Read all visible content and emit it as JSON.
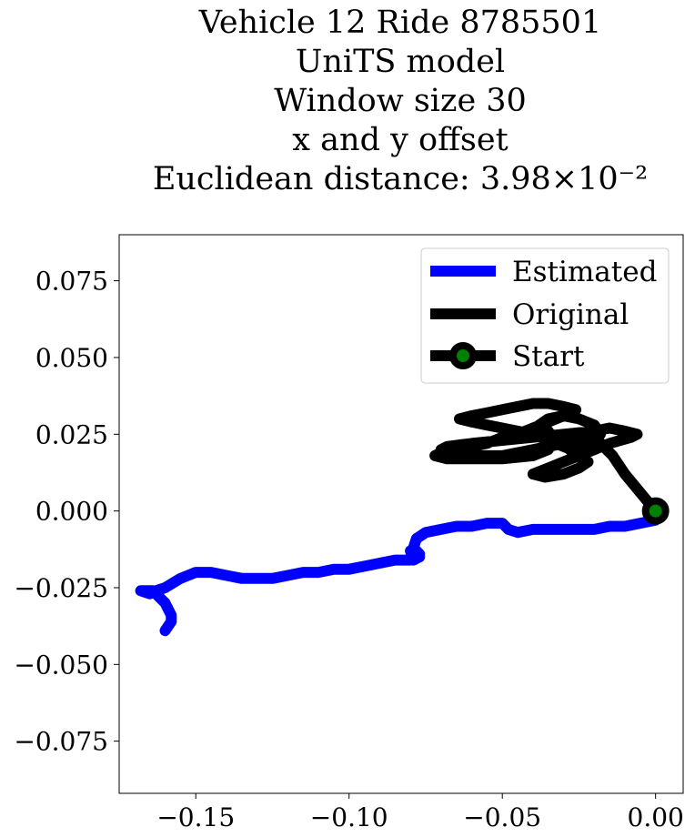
{
  "chart_data": {
    "type": "line",
    "title_lines": [
      "Vehicle 12 Ride 8785501",
      "UniTS model",
      "Window size 30",
      "x and y offset",
      "Euclidean distance: 3.98×10⁻²"
    ],
    "xlabel": "",
    "ylabel": "",
    "xlim": [
      -0.175,
      0.009
    ],
    "ylim": [
      -0.092,
      0.09
    ],
    "xticks": [
      -0.15,
      -0.1,
      -0.05,
      0.0
    ],
    "xtick_labels": [
      "−0.15",
      "−0.10",
      "−0.05",
      "0.00"
    ],
    "yticks": [
      0.075,
      0.05,
      0.025,
      0.0,
      -0.025,
      -0.05,
      -0.075
    ],
    "ytick_labels": [
      "0.075",
      "0.050",
      "0.025",
      "0.000",
      "−0.025",
      "−0.050",
      "−0.075"
    ],
    "grid": false,
    "legend_position": "top-right",
    "series": [
      {
        "name": "Estimated",
        "color": "#0000ff",
        "points": [
          [
            0.0,
            -0.003
          ],
          [
            -0.005,
            -0.004
          ],
          [
            -0.01,
            -0.005
          ],
          [
            -0.015,
            -0.005
          ],
          [
            -0.02,
            -0.006
          ],
          [
            -0.025,
            -0.006
          ],
          [
            -0.03,
            -0.006
          ],
          [
            -0.035,
            -0.006
          ],
          [
            -0.04,
            -0.006
          ],
          [
            -0.045,
            -0.007
          ],
          [
            -0.048,
            -0.006
          ],
          [
            -0.05,
            -0.004
          ],
          [
            -0.055,
            -0.004
          ],
          [
            -0.06,
            -0.005
          ],
          [
            -0.065,
            -0.005
          ],
          [
            -0.07,
            -0.006
          ],
          [
            -0.075,
            -0.007
          ],
          [
            -0.078,
            -0.009
          ],
          [
            -0.079,
            -0.012
          ],
          [
            -0.077,
            -0.014
          ],
          [
            -0.08,
            -0.013
          ],
          [
            -0.079,
            -0.016
          ],
          [
            -0.077,
            -0.015
          ],
          [
            -0.08,
            -0.016
          ],
          [
            -0.085,
            -0.016
          ],
          [
            -0.09,
            -0.017
          ],
          [
            -0.095,
            -0.018
          ],
          [
            -0.1,
            -0.019
          ],
          [
            -0.105,
            -0.019
          ],
          [
            -0.11,
            -0.02
          ],
          [
            -0.113,
            -0.02
          ],
          [
            -0.115,
            -0.02
          ],
          [
            -0.12,
            -0.021
          ],
          [
            -0.125,
            -0.022
          ],
          [
            -0.13,
            -0.022
          ],
          [
            -0.135,
            -0.022
          ],
          [
            -0.14,
            -0.021
          ],
          [
            -0.145,
            -0.02
          ],
          [
            -0.15,
            -0.02
          ],
          [
            -0.155,
            -0.022
          ],
          [
            -0.16,
            -0.025
          ],
          [
            -0.163,
            -0.026
          ],
          [
            -0.165,
            -0.027
          ],
          [
            -0.168,
            -0.026
          ],
          [
            -0.164,
            -0.026
          ],
          [
            -0.162,
            -0.028
          ],
          [
            -0.16,
            -0.03
          ],
          [
            -0.158,
            -0.034
          ],
          [
            -0.158,
            -0.036
          ],
          [
            -0.16,
            -0.039
          ]
        ]
      },
      {
        "name": "Original",
        "color": "#000000",
        "points": [
          [
            0.0,
            0.0
          ],
          [
            -0.005,
            0.006
          ],
          [
            -0.01,
            0.012
          ],
          [
            -0.014,
            0.018
          ],
          [
            -0.018,
            0.022
          ],
          [
            -0.02,
            0.026
          ],
          [
            -0.025,
            0.024
          ],
          [
            -0.03,
            0.022
          ],
          [
            -0.04,
            0.02
          ],
          [
            -0.05,
            0.018
          ],
          [
            -0.06,
            0.018
          ],
          [
            -0.065,
            0.019
          ],
          [
            -0.07,
            0.02
          ],
          [
            -0.068,
            0.021
          ],
          [
            -0.06,
            0.022
          ],
          [
            -0.05,
            0.023
          ],
          [
            -0.04,
            0.024
          ],
          [
            -0.03,
            0.025
          ],
          [
            -0.02,
            0.026
          ],
          [
            -0.015,
            0.027
          ],
          [
            -0.01,
            0.026
          ],
          [
            -0.006,
            0.025
          ],
          [
            -0.008,
            0.024
          ],
          [
            -0.015,
            0.022
          ],
          [
            -0.02,
            0.02
          ],
          [
            -0.025,
            0.018
          ],
          [
            -0.03,
            0.016
          ],
          [
            -0.035,
            0.014
          ],
          [
            -0.04,
            0.012
          ],
          [
            -0.036,
            0.011
          ],
          [
            -0.03,
            0.012
          ],
          [
            -0.025,
            0.014
          ],
          [
            -0.022,
            0.016
          ],
          [
            -0.025,
            0.019
          ],
          [
            -0.03,
            0.021
          ],
          [
            -0.035,
            0.023
          ],
          [
            -0.04,
            0.025
          ],
          [
            -0.045,
            0.026
          ],
          [
            -0.05,
            0.027
          ],
          [
            -0.055,
            0.028
          ],
          [
            -0.06,
            0.029
          ],
          [
            -0.064,
            0.03
          ],
          [
            -0.06,
            0.031
          ],
          [
            -0.055,
            0.032
          ],
          [
            -0.05,
            0.033
          ],
          [
            -0.045,
            0.034
          ],
          [
            -0.04,
            0.035
          ],
          [
            -0.035,
            0.035
          ],
          [
            -0.03,
            0.034
          ],
          [
            -0.026,
            0.033
          ],
          [
            -0.03,
            0.031
          ],
          [
            -0.035,
            0.029
          ],
          [
            -0.04,
            0.027
          ],
          [
            -0.045,
            0.025
          ],
          [
            -0.05,
            0.024
          ],
          [
            -0.055,
            0.022
          ],
          [
            -0.06,
            0.021
          ],
          [
            -0.065,
            0.02
          ],
          [
            -0.07,
            0.019
          ],
          [
            -0.072,
            0.018
          ],
          [
            -0.068,
            0.017
          ],
          [
            -0.06,
            0.017
          ],
          [
            -0.05,
            0.017
          ],
          [
            -0.04,
            0.018
          ],
          [
            -0.035,
            0.02
          ],
          [
            -0.033,
            0.023
          ],
          [
            -0.035,
            0.026
          ],
          [
            -0.038,
            0.028
          ],
          [
            -0.035,
            0.03
          ],
          [
            -0.03,
            0.031
          ],
          [
            -0.025,
            0.03
          ],
          [
            -0.02,
            0.028
          ],
          [
            -0.018,
            0.025
          ],
          [
            -0.022,
            0.022
          ],
          [
            -0.028,
            0.02
          ]
        ]
      }
    ],
    "start": {
      "name": "Start",
      "point": [
        0.0,
        0.0
      ],
      "marker_edge_color": "#000000",
      "marker_face_color": "#008000"
    }
  }
}
